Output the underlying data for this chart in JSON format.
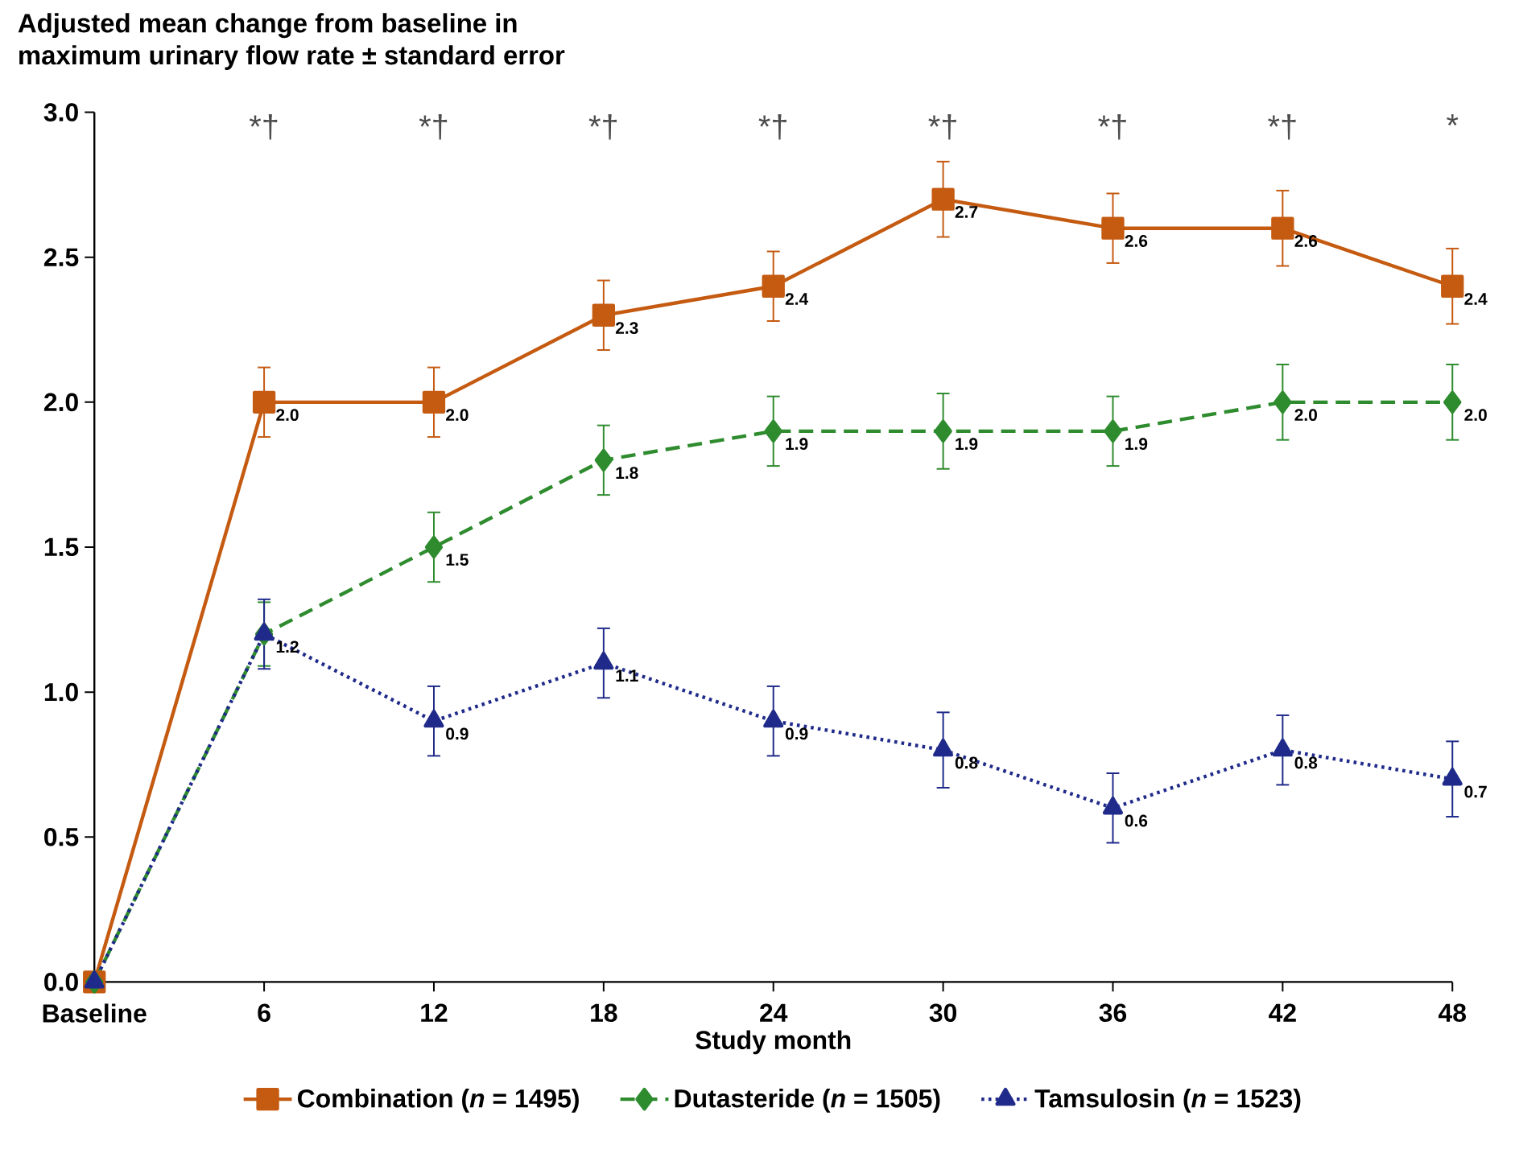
{
  "chart_data": {
    "type": "line",
    "ylabel": "Adjusted mean change from baseline in maximum urinary flow rate ± standard error",
    "xlabel": "Study month",
    "categories": [
      "Baseline",
      "6",
      "12",
      "18",
      "24",
      "30",
      "36",
      "42",
      "48"
    ],
    "ylim": [
      0,
      3
    ],
    "yticks": [
      {
        "value": 0,
        "label": "0.0"
      },
      0.5,
      {
        "value": 1,
        "label": "1.0"
      },
      1.5,
      {
        "value": 2,
        "label": "2.0"
      },
      2.5,
      {
        "value": 3,
        "label": "3.0"
      }
    ],
    "series": [
      {
        "name": "Combination (*n* = 1495)",
        "color": "#c55a11",
        "marker": "square",
        "line_style": "solid",
        "values": [
          0,
          2.0,
          2.0,
          2.3,
          2.4,
          2.7,
          2.6,
          2.6,
          2.4
        ],
        "errors": [
          null,
          0.12,
          0.12,
          0.12,
          0.12,
          0.13,
          0.12,
          0.13,
          0.13
        ],
        "value_labels": [
          null,
          "2.0",
          "2.0",
          "2.3",
          "2.4",
          "2.7",
          "2.6",
          "2.6",
          "2.4"
        ]
      },
      {
        "name": "Dutasteride (*n* = 1505)",
        "color": "#2e8b2e",
        "marker": "diamond",
        "line_style": "dashed",
        "values": [
          0,
          1.2,
          1.5,
          1.8,
          1.9,
          1.9,
          1.9,
          2.0,
          2.0
        ],
        "errors": [
          null,
          0.11,
          0.12,
          0.12,
          0.12,
          0.13,
          0.12,
          0.13,
          0.13
        ],
        "value_labels": [
          null,
          "1.2",
          "1.5",
          "1.8",
          "1.9",
          "1.9",
          "1.9",
          "2.0",
          "2.0"
        ]
      },
      {
        "name": "Tamsulosin (*n* = 1523)",
        "color": "#1f2a8a",
        "marker": "triangle",
        "line_style": "dotted",
        "values": [
          0,
          1.2,
          0.9,
          1.1,
          0.9,
          0.8,
          0.6,
          0.8,
          0.7
        ],
        "errors": [
          null,
          0.12,
          0.12,
          0.12,
          0.12,
          0.13,
          0.12,
          0.12,
          0.13
        ],
        "value_labels": [
          null,
          null,
          "0.9",
          "1.1",
          "0.9",
          "0.8",
          "0.6",
          "0.8",
          "0.7"
        ]
      }
    ],
    "annotations": [
      "*†",
      "*†",
      "*†",
      "*†",
      "*†",
      "*†",
      "*†",
      "*"
    ],
    "legend": "bottom",
    "grid": false
  }
}
